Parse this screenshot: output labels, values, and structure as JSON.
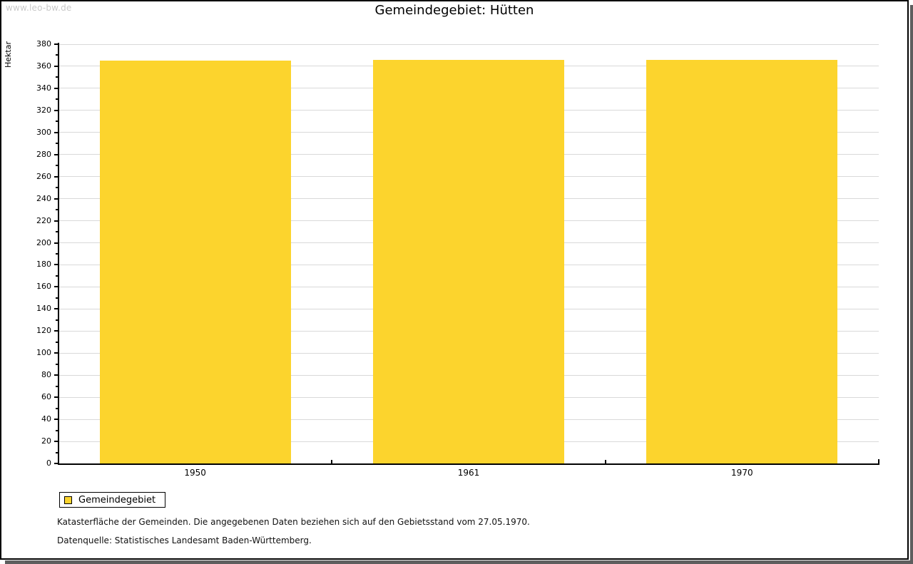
{
  "watermark": "www.leo-bw.de",
  "header": {
    "title": "Gemeindegebiet: Hütten"
  },
  "chart_data": {
    "type": "bar",
    "title": "Gemeindegebiet: Hütten",
    "categories": [
      "1950",
      "1961",
      "1970"
    ],
    "series": [
      {
        "name": "Gemeindegebiet",
        "color": "#fcd42d",
        "values": [
          365,
          366,
          366
        ]
      }
    ],
    "xlabel": "",
    "ylabel": "Hektar",
    "ylim": [
      0,
      380
    ],
    "yticks": [
      0,
      20,
      40,
      60,
      80,
      100,
      120,
      140,
      160,
      180,
      200,
      220,
      240,
      260,
      280,
      300,
      320,
      340,
      360,
      380
    ],
    "minor_tick_step": 10,
    "grid": true,
    "legend_position": "bottom-left"
  },
  "legend": {
    "items": [
      {
        "label": "Gemeindegebiet",
        "color": "#fcd42d"
      }
    ]
  },
  "footnotes": {
    "line1": "Katasterfläche der Gemeinden. Die angegebenen Daten beziehen sich auf den Gebietsstand vom 27.05.1970.",
    "line2": "Datenquelle: Statistisches Landesamt Baden-Württemberg."
  },
  "colors": {
    "bar": "#fcd42d",
    "gridline": "#d9d9d9",
    "axis": "#000000",
    "watermark_text": "#c9c9c9",
    "shadow": "#5e5e5e"
  }
}
